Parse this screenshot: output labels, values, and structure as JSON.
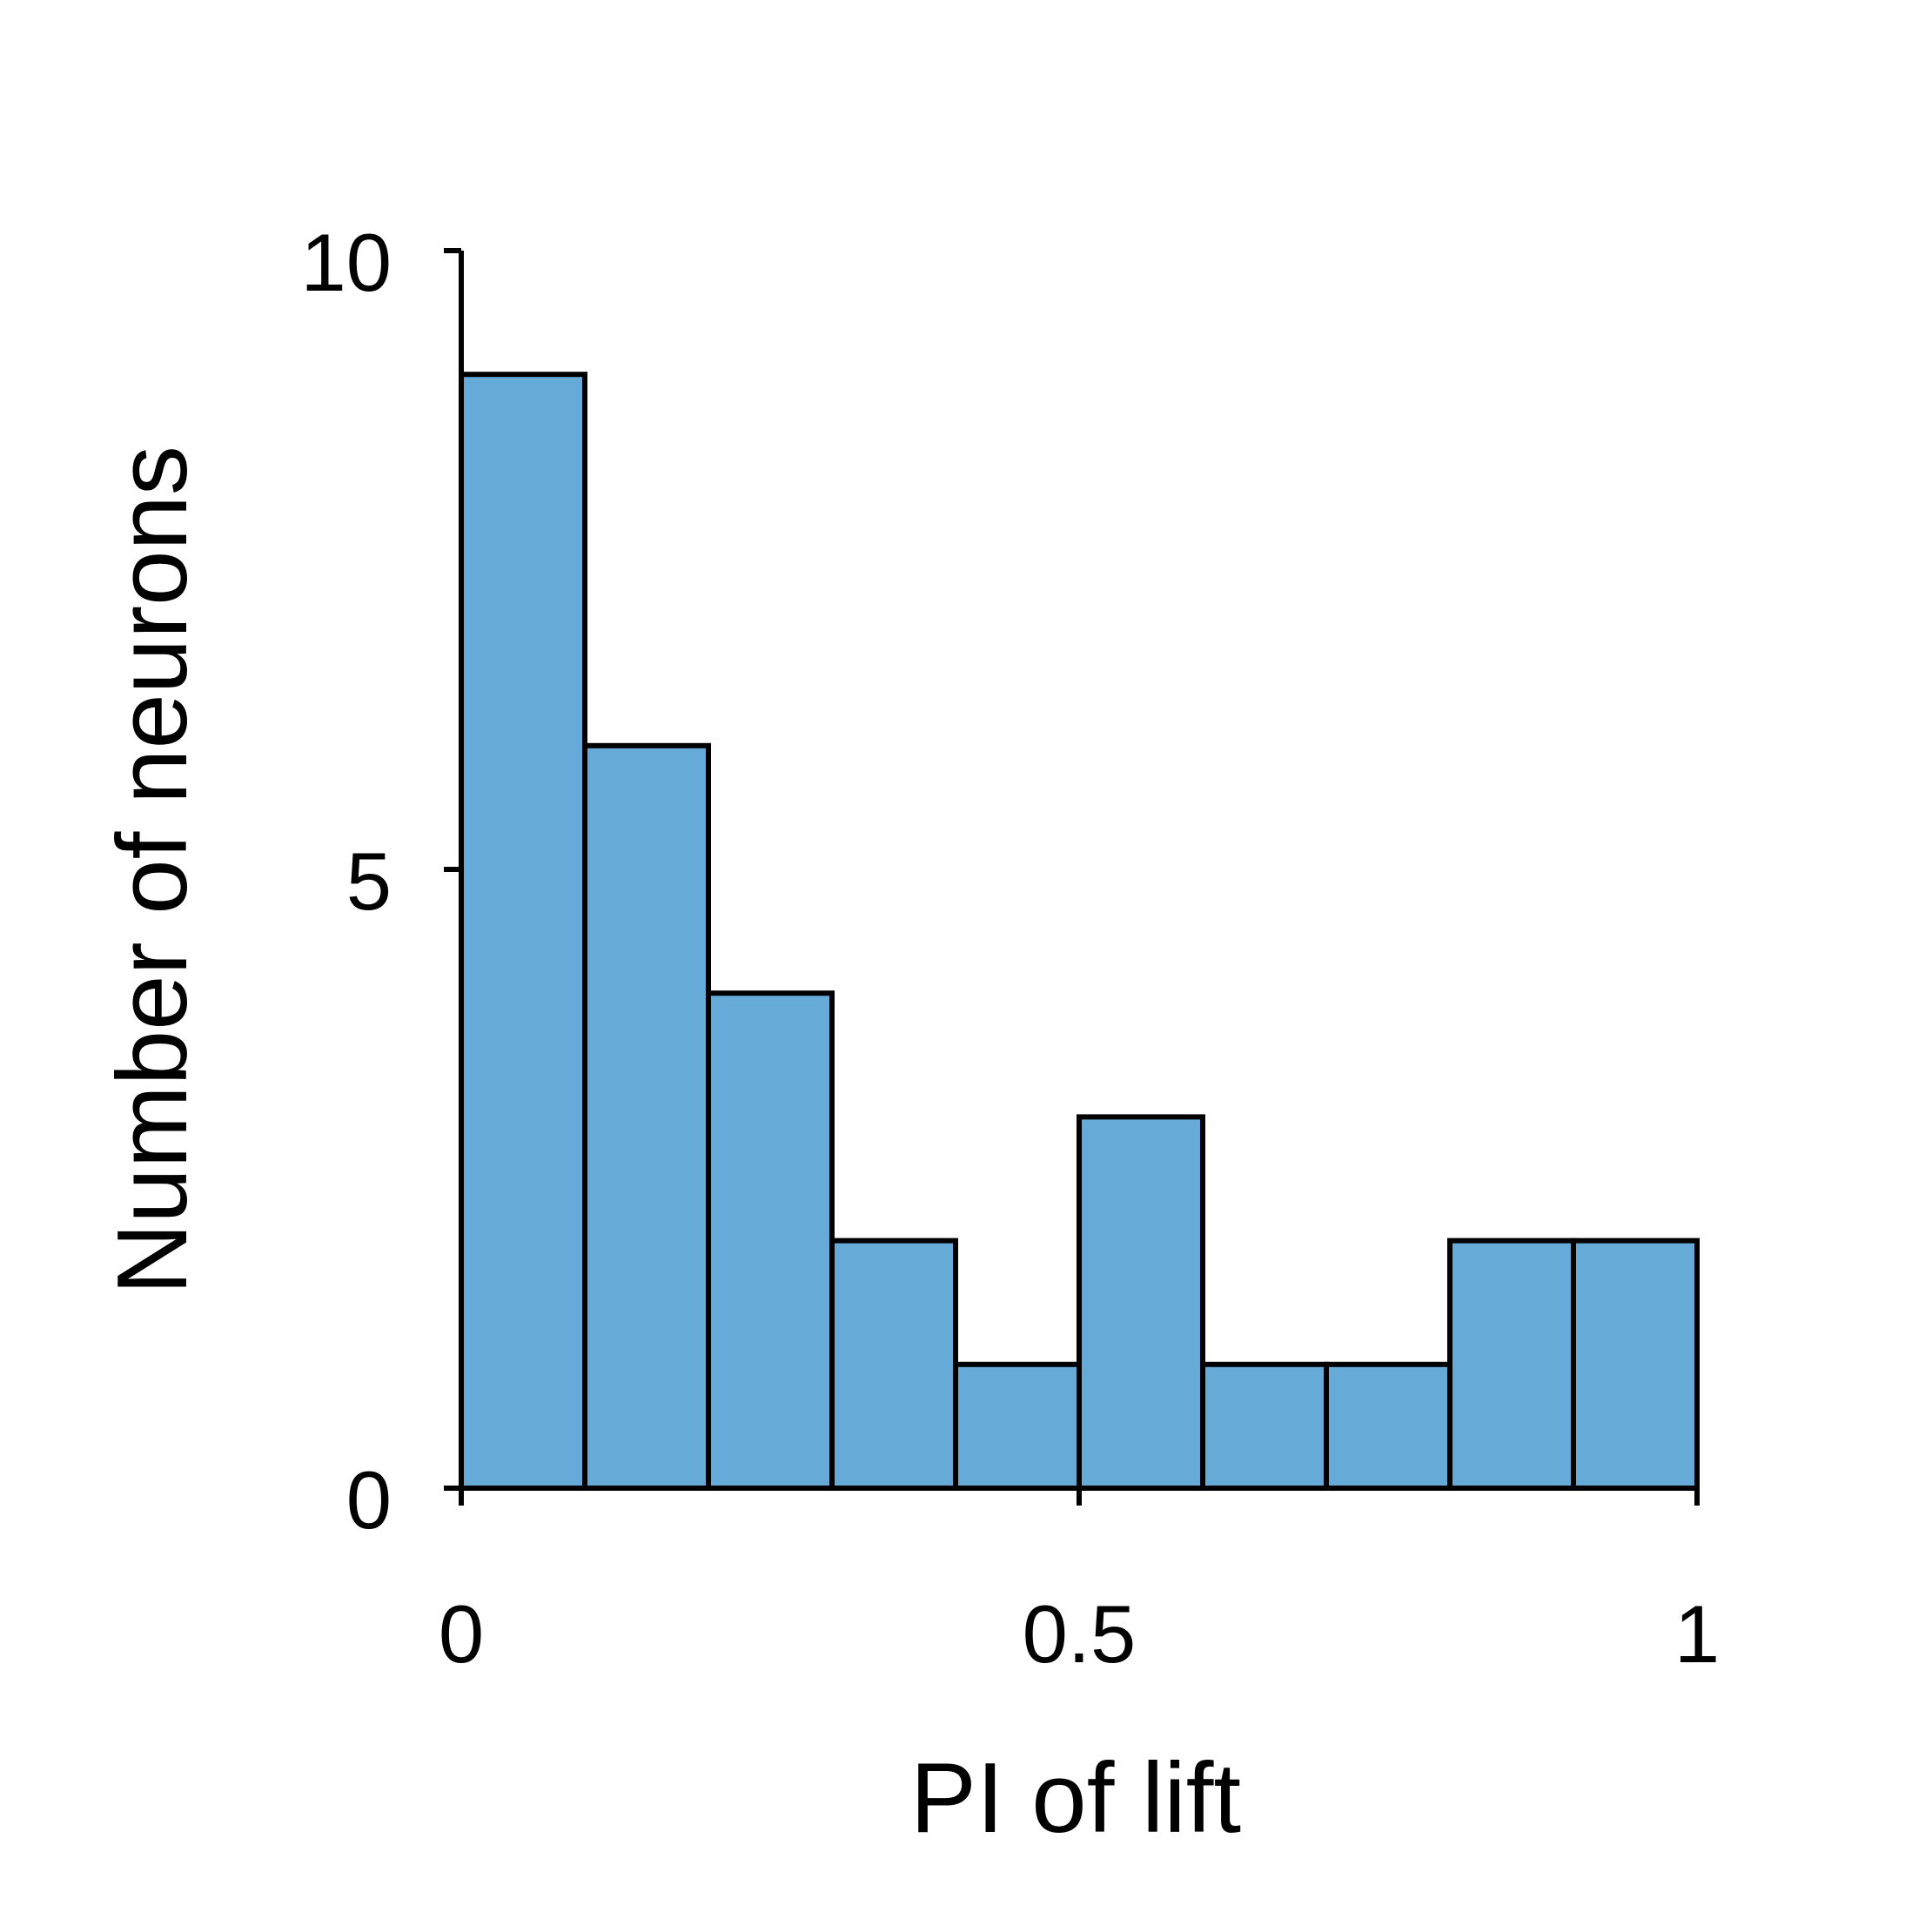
{
  "chart_data": {
    "type": "bar",
    "title": "",
    "xlabel": "PI of lift",
    "ylabel": "Number of neurons",
    "bin_edges": [
      0,
      0.1,
      0.2,
      0.3,
      0.4,
      0.5,
      0.6,
      0.7,
      0.8,
      0.9,
      1.0
    ],
    "values": [
      9,
      6,
      4,
      2,
      1,
      3,
      1,
      1,
      2,
      2
    ],
    "xlim": [
      0,
      1
    ],
    "ylim": [
      0,
      10
    ],
    "xticks": [
      0,
      0.5,
      1
    ],
    "xtick_labels": [
      "0",
      "0.5",
      "1"
    ],
    "yticks": [
      0,
      5,
      10
    ],
    "ytick_labels": [
      "0",
      "5",
      "10"
    ],
    "grid": false,
    "legend": "none",
    "bar_color": "#66aad7",
    "edge_color": "#000000"
  }
}
